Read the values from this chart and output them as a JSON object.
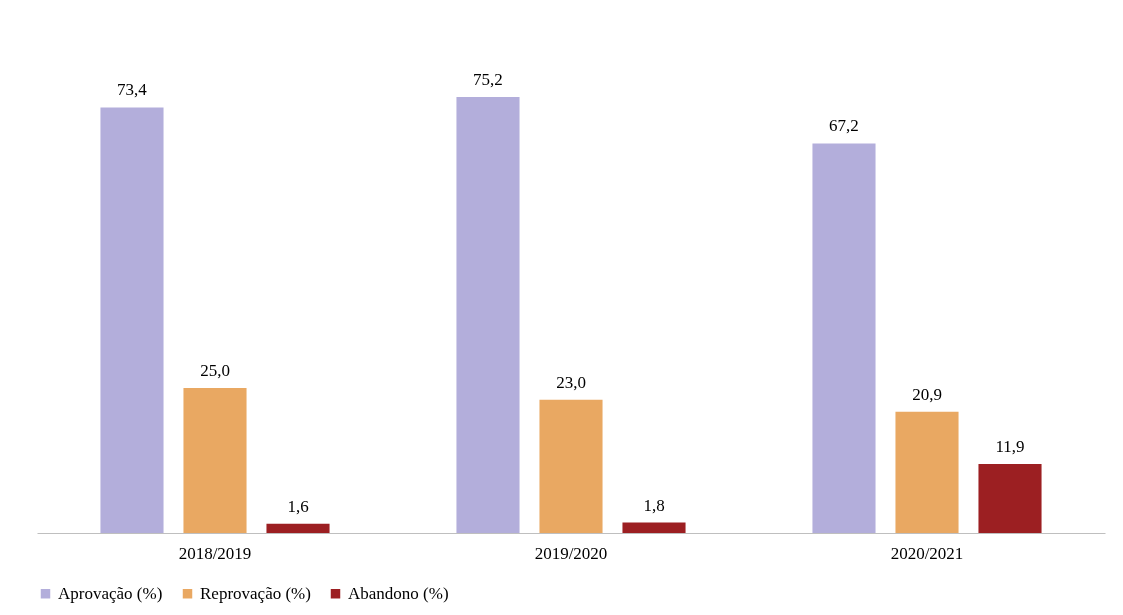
{
  "chart_data": {
    "type": "bar",
    "categories": [
      "2018/2019",
      "2019/2020",
      "2020/2021"
    ],
    "series": [
      {
        "name": "Aprovação (%)",
        "color": "#b3aedb",
        "values": [
          73.4,
          75.2,
          67.2
        ],
        "value_labels": [
          "73,4",
          "75,2",
          "67,2"
        ]
      },
      {
        "name": "Reprovação (%)",
        "color": "#e9a862",
        "values": [
          25.0,
          23.0,
          20.9
        ],
        "value_labels": [
          "25,0",
          "23,0",
          "20,9"
        ]
      },
      {
        "name": "Abandono (%)",
        "color": "#9c1f22",
        "values": [
          1.6,
          1.8,
          11.9
        ],
        "value_labels": [
          "1,6",
          "1,8",
          "11,9"
        ]
      }
    ],
    "legend": "bottom",
    "grid": false
  }
}
